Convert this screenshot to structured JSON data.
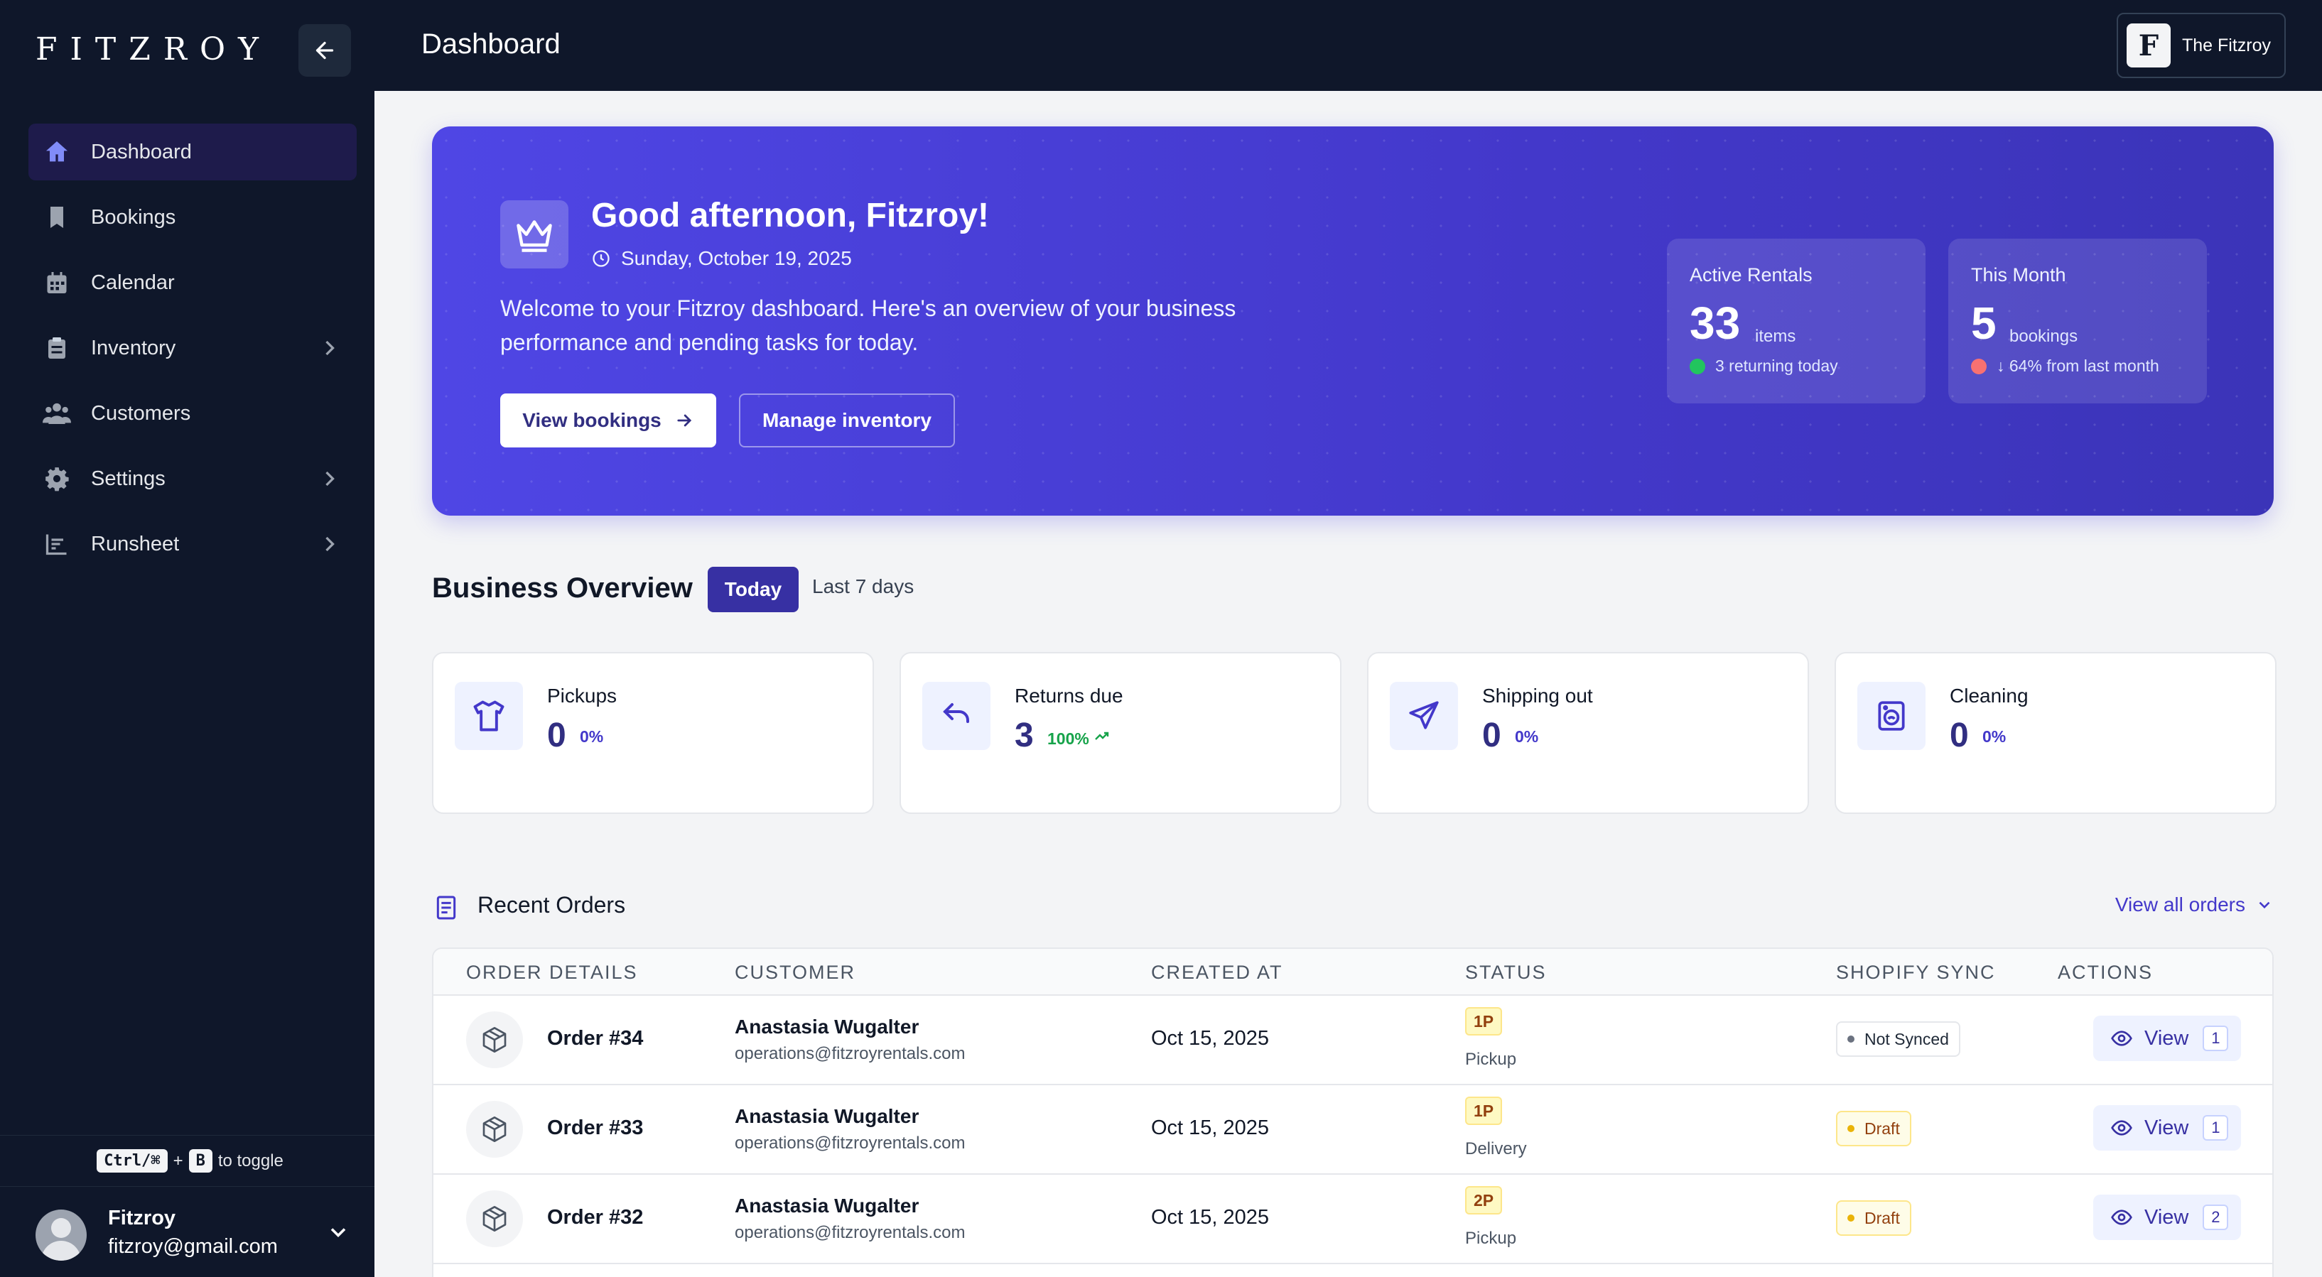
{
  "brand": {
    "logo_text": "FITZROY",
    "accent": "#4f46e5",
    "sidebar_bg": "#0f172a"
  },
  "sidebar": {
    "collapse_icon": "arrow-left-icon",
    "items": [
      {
        "label": "Dashboard",
        "icon": "home-icon",
        "active": true
      },
      {
        "label": "Bookings",
        "icon": "bookmark-icon"
      },
      {
        "label": "Calendar",
        "icon": "calendar-icon"
      },
      {
        "label": "Inventory",
        "icon": "clipboard-icon",
        "has_submenu": true
      },
      {
        "label": "Customers",
        "icon": "users-icon"
      },
      {
        "label": "Settings",
        "icon": "gear-icon",
        "has_submenu": true
      },
      {
        "label": "Runsheet",
        "icon": "chart-icon",
        "has_submenu": true
      }
    ],
    "toggle_hint": {
      "key1": "Ctrl/⌘",
      "plus": "+",
      "key2": "B",
      "suffix": "to toggle"
    },
    "user": {
      "name": "Fitzroy",
      "email": "fitzroy@gmail.com"
    }
  },
  "topbar": {
    "title": "Dashboard",
    "account_name": "The Fitzroy",
    "account_logo": "F"
  },
  "hero": {
    "greeting": "Good afternoon, Fitzroy!",
    "date": "Sunday, October 19, 2025",
    "welcome": "Welcome to your Fitzroy dashboard. Here's an overview of your business performance and pending tasks for today.",
    "primary_button": "View bookings",
    "secondary_button": "Manage inventory",
    "stats": [
      {
        "label": "Active Rentals",
        "value": "33",
        "unit": "items",
        "sub": "3 returning today",
        "dot_color": "#22c55e"
      },
      {
        "label": "This Month",
        "value": "5",
        "unit": "bookings",
        "sub": "↓ 64% from last month",
        "dot_color": "#f87171"
      }
    ]
  },
  "overview": {
    "title": "Business Overview",
    "tabs": [
      {
        "label": "Today",
        "active": true
      },
      {
        "label": "Last 7 days"
      }
    ],
    "metrics": [
      {
        "label": "Pickups",
        "value": "0",
        "pct": "0%",
        "icon": "shirt-icon"
      },
      {
        "label": "Returns due",
        "value": "3",
        "pct": "100%",
        "icon": "undo-icon",
        "trend": "up"
      },
      {
        "label": "Shipping out",
        "value": "0",
        "pct": "0%",
        "icon": "send-icon"
      },
      {
        "label": "Cleaning",
        "value": "0",
        "pct": "0%",
        "icon": "washer-icon"
      }
    ]
  },
  "orders": {
    "title": "Recent Orders",
    "view_all": "View all orders",
    "columns": [
      "ORDER DETAILS",
      "CUSTOMER",
      "CREATED AT",
      "STATUS",
      "SHOPIFY SYNC",
      "ACTIONS"
    ],
    "rows": [
      {
        "order": "Order #34",
        "customer": "Anastasia Wugalter",
        "email": "operations@fitzroyrentals.com",
        "created": "Oct 15, 2025",
        "badge": "1P",
        "status": "Pickup",
        "sync": "Not Synced",
        "action": "View",
        "count": "1"
      },
      {
        "order": "Order #33",
        "customer": "Anastasia Wugalter",
        "email": "operations@fitzroyrentals.com",
        "created": "Oct 15, 2025",
        "badge": "1P",
        "status": "Delivery",
        "sync": "Draft",
        "action": "View",
        "count": "1"
      },
      {
        "order": "Order #32",
        "customer": "Anastasia Wugalter",
        "email": "operations@fitzroyrentals.com",
        "created": "Oct 15, 2025",
        "badge": "2P",
        "status": "Pickup",
        "sync": "Draft",
        "action": "View",
        "count": "2"
      }
    ]
  }
}
